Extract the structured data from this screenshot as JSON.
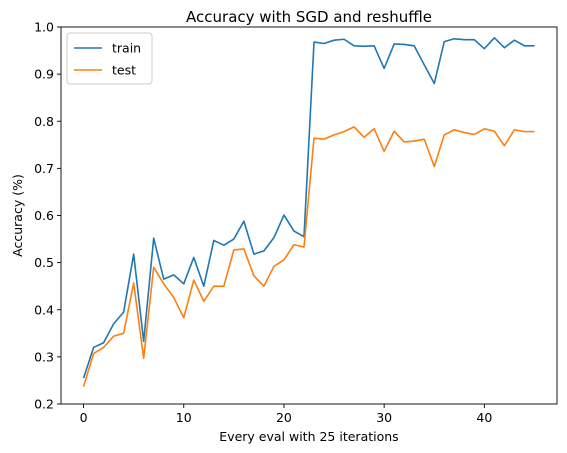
{
  "chart_data": {
    "type": "line",
    "title": "Accuracy with SGD and reshuffle",
    "xlabel": "Every eval with 25 iterations",
    "ylabel": "Accuracy (%)",
    "xlim": [
      -2.25,
      47.25
    ],
    "ylim": [
      0.2,
      1.0
    ],
    "xticks": [
      0,
      10,
      20,
      30,
      40
    ],
    "yticks": [
      0.2,
      0.3,
      0.4,
      0.5,
      0.6,
      0.7,
      0.8,
      0.9,
      1.0
    ],
    "xtick_labels": [
      "0",
      "10",
      "20",
      "30",
      "40"
    ],
    "ytick_labels": [
      "0.2",
      "0.3",
      "0.4",
      "0.5",
      "0.6",
      "0.7",
      "0.8",
      "0.9",
      "1.0"
    ],
    "grid": false,
    "legend_position": "upper left",
    "x": [
      0,
      1,
      2,
      3,
      4,
      5,
      6,
      7,
      8,
      9,
      10,
      11,
      12,
      13,
      14,
      15,
      16,
      17,
      18,
      19,
      20,
      21,
      22,
      23,
      24,
      25,
      26,
      27,
      28,
      29,
      30,
      31,
      32,
      33,
      34,
      35,
      36,
      37,
      38,
      39,
      40,
      41,
      42,
      43,
      44,
      45
    ],
    "series": [
      {
        "name": "train",
        "color": "#1f77b4",
        "values": [
          0.255,
          0.32,
          0.33,
          0.37,
          0.395,
          0.518,
          0.333,
          0.552,
          0.465,
          0.474,
          0.455,
          0.511,
          0.45,
          0.547,
          0.537,
          0.55,
          0.588,
          0.518,
          0.525,
          0.553,
          0.601,
          0.567,
          0.555,
          0.968,
          0.965,
          0.972,
          0.974,
          0.96,
          0.959,
          0.96,
          0.912,
          0.964,
          0.963,
          0.96,
          0.92,
          0.88,
          0.969,
          0.975,
          0.973,
          0.973,
          0.954,
          0.977,
          0.956,
          0.972,
          0.96,
          0.96
        ]
      },
      {
        "name": "test",
        "color": "#ff7f0e",
        "values": [
          0.237,
          0.307,
          0.32,
          0.344,
          0.35,
          0.457,
          0.297,
          0.49,
          0.455,
          0.426,
          0.383,
          0.463,
          0.418,
          0.45,
          0.45,
          0.527,
          0.529,
          0.472,
          0.45,
          0.492,
          0.506,
          0.538,
          0.533,
          0.764,
          0.762,
          0.771,
          0.778,
          0.788,
          0.766,
          0.784,
          0.736,
          0.779,
          0.756,
          0.758,
          0.762,
          0.704,
          0.771,
          0.782,
          0.776,
          0.772,
          0.784,
          0.779,
          0.748,
          0.782,
          0.778,
          0.778
        ]
      }
    ]
  }
}
